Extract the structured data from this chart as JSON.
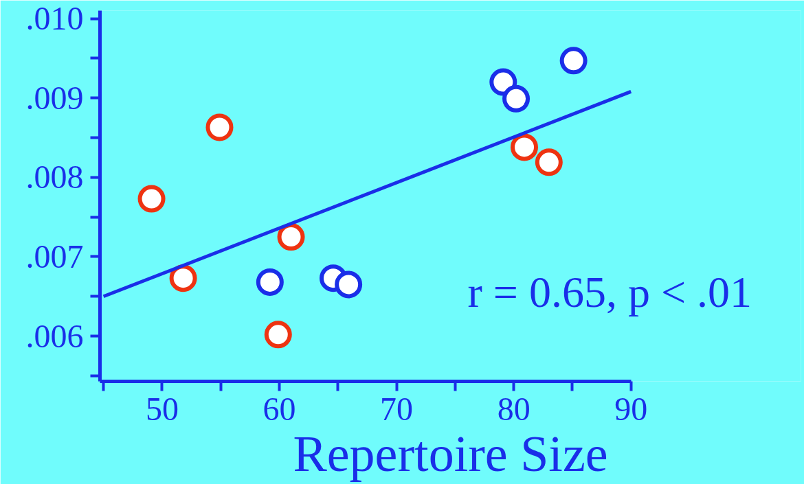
{
  "chart_data": {
    "type": "scatter",
    "xlabel": "Repertoire Size",
    "xlim": [
      44.7,
      90
    ],
    "ylim": [
      0.00543,
      0.0101
    ],
    "xticks": [
      {
        "value": 45,
        "label": null
      },
      50,
      {
        "value": 55,
        "label": null
      },
      60,
      {
        "value": 65,
        "label": null
      },
      70,
      {
        "value": 75,
        "label": null
      },
      80,
      {
        "value": 85,
        "label": null
      },
      90
    ],
    "yticks": [
      {
        "value": 0.0055,
        "label": null
      },
      {
        "value": 0.006,
        "label": ".006"
      },
      {
        "value": 0.0065,
        "label": null
      },
      {
        "value": 0.007,
        "label": ".007"
      },
      {
        "value": 0.0075,
        "label": null
      },
      {
        "value": 0.008,
        "label": ".008"
      },
      {
        "value": 0.0085,
        "label": null
      },
      {
        "value": 0.009,
        "label": ".009"
      },
      {
        "value": 0.0095,
        "label": null
      },
      {
        "value": 0.01,
        "label": ".010"
      }
    ],
    "series": [
      {
        "color": "#ee3311",
        "x": [
          49.1,
          54.9,
          51.8,
          61.0,
          59.9,
          80.9,
          83.0
        ],
        "values": [
          0.00773,
          0.00863,
          0.00673,
          0.00725,
          0.00602,
          0.00838,
          0.00819
        ]
      },
      {
        "color": "#1a2ee8",
        "x": [
          59.2,
          64.6,
          65.9,
          79.1,
          80.2,
          85.1
        ],
        "values": [
          0.00668,
          0.00673,
          0.00665,
          0.0092,
          0.00899,
          0.00947
        ]
      },
      {
        "type": "line",
        "marker": "none",
        "color": "#1a2ee8",
        "x": [
          45,
          90
        ],
        "values": [
          0.0065,
          0.00908
        ]
      }
    ],
    "marker": "circle",
    "line_style": "solid",
    "grid": false,
    "annotations": [
      "r = 0.65, p < .01"
    ]
  }
}
